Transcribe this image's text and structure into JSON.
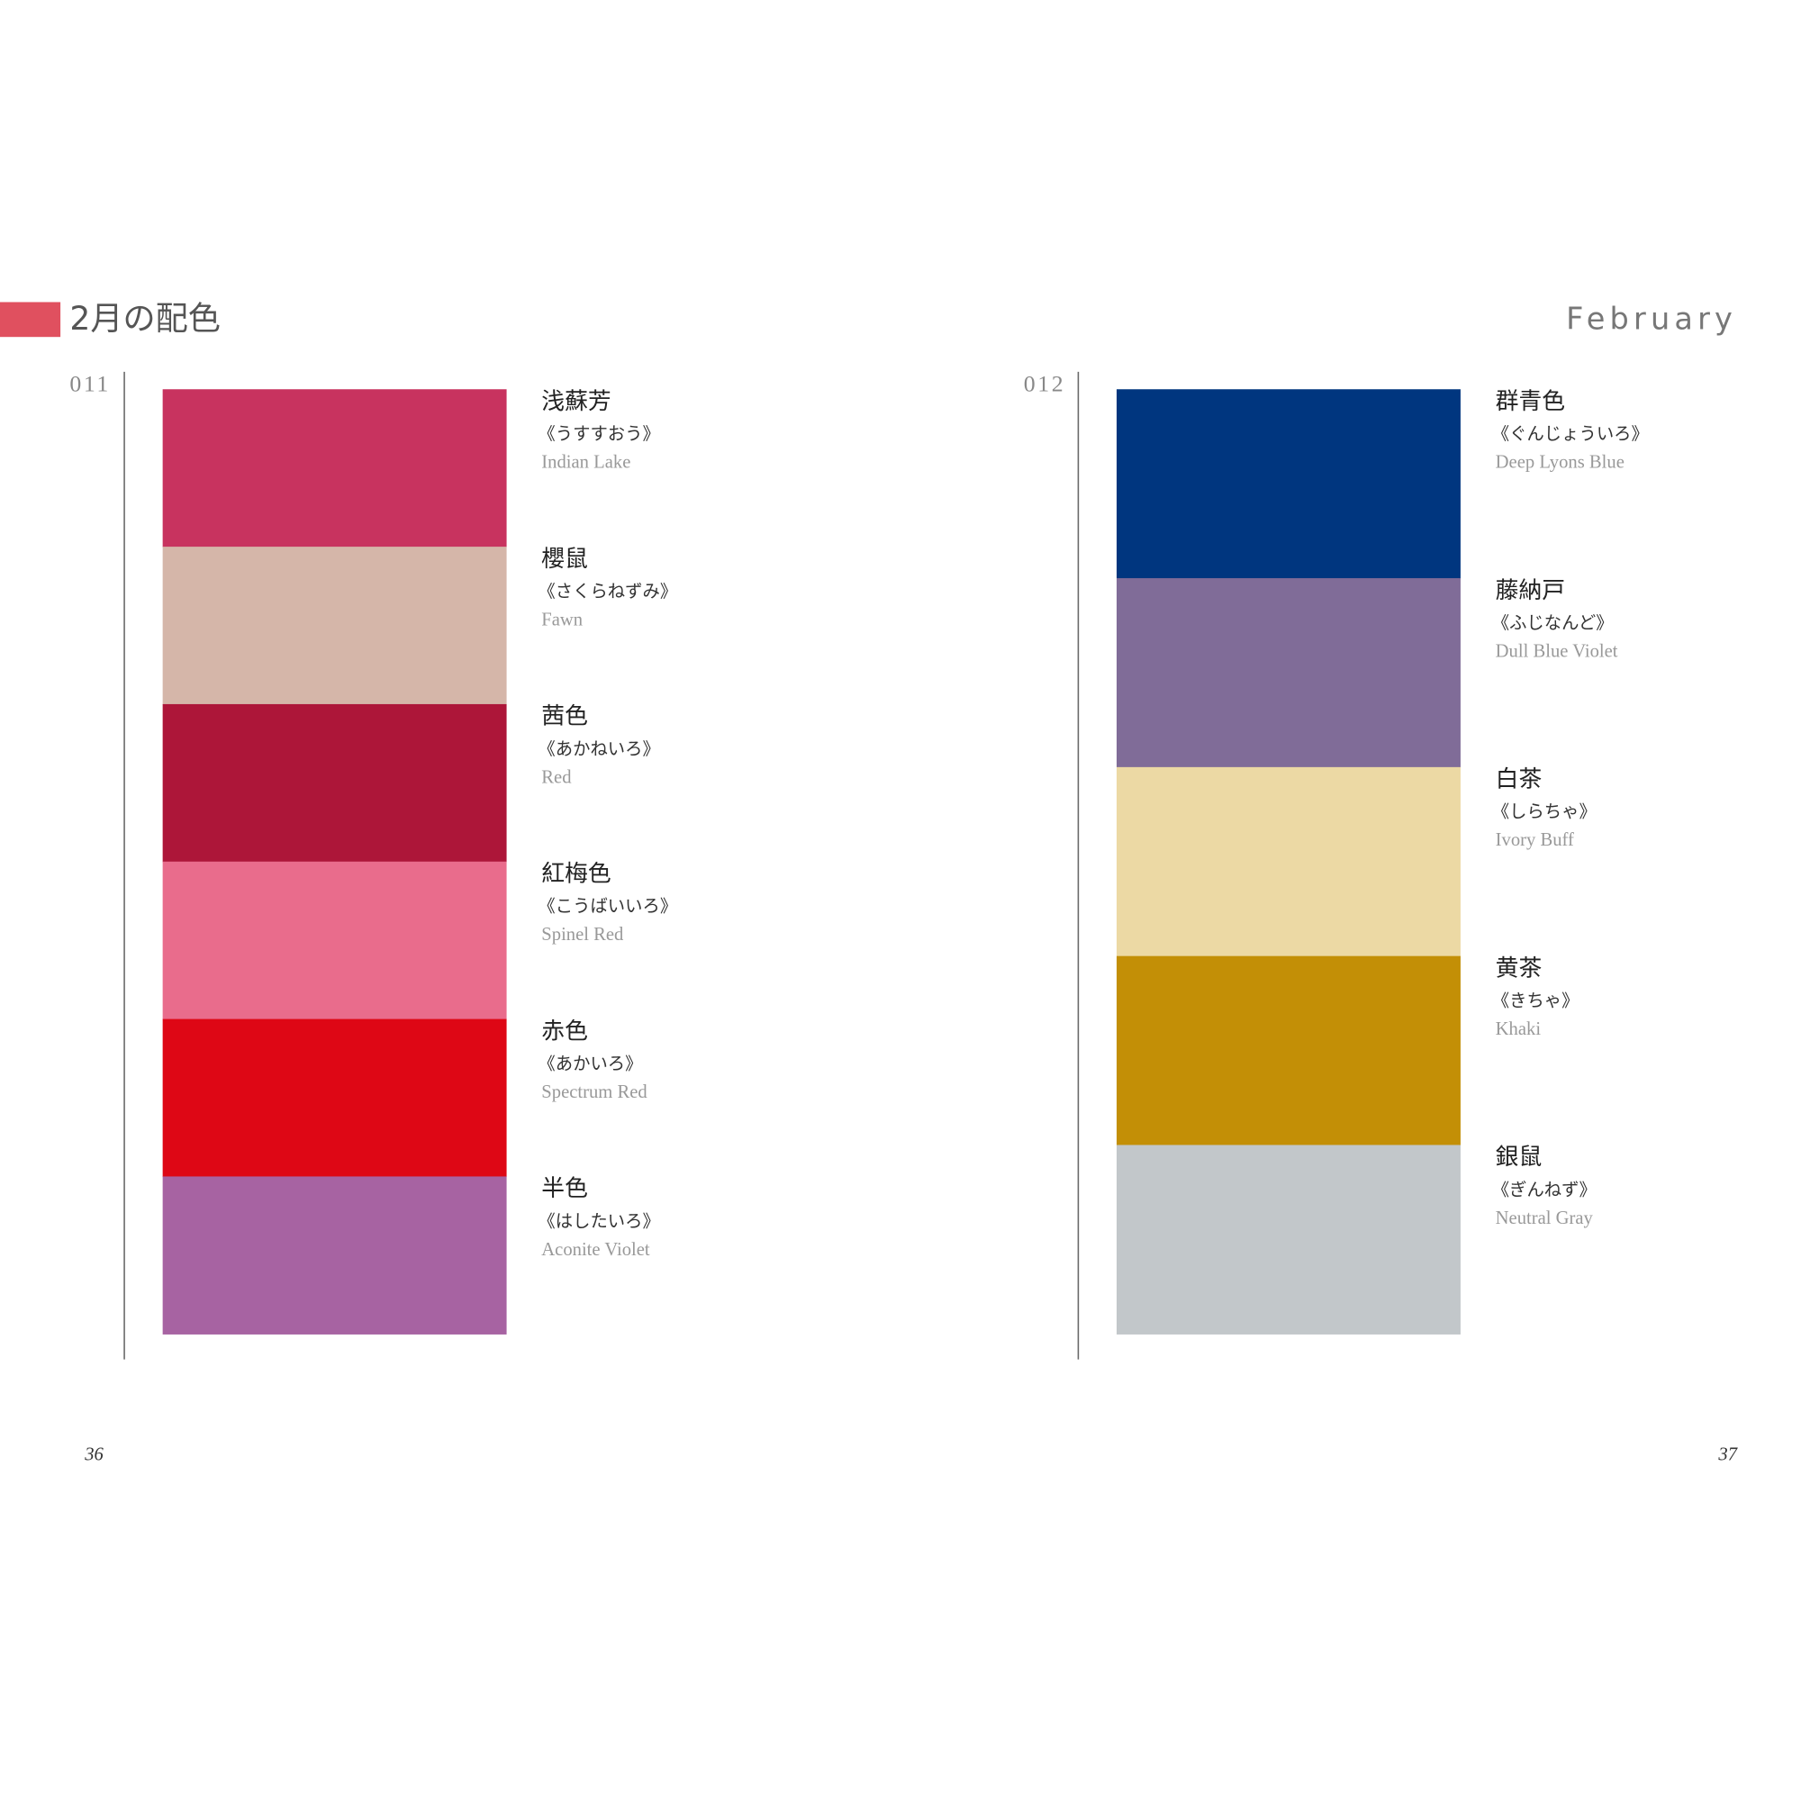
{
  "header": {
    "title": "2月の配色",
    "subtitle": "February"
  },
  "pages": [
    {
      "number_label": "011",
      "page_number": "36",
      "colors": [
        {
          "name": "浅蘇芳",
          "reading": "《うすすおう》",
          "english": "Indian Lake",
          "color": "#c8335f"
        },
        {
          "name": "櫻鼠",
          "reading": "《さくらねずみ》",
          "english": "Fawn",
          "color": "#d5b6a9"
        },
        {
          "name": "茜色",
          "reading": "《あかねいろ》",
          "english": "Red",
          "color": "#ad1639"
        },
        {
          "name": "紅梅色",
          "reading": "《こうばいいろ》",
          "english": "Spinel Red",
          "color": "#e96c8c"
        },
        {
          "name": "赤色",
          "reading": "《あかいろ》",
          "english": "Spectrum Red",
          "color": "#de0715"
        },
        {
          "name": "半色",
          "reading": "《はしたいろ》",
          "english": "Aconite Violet",
          "color": "#a763a2"
        }
      ]
    },
    {
      "number_label": "012",
      "page_number": "37",
      "colors": [
        {
          "name": "群青色",
          "reading": "《ぐんじょういろ》",
          "english": "Deep Lyons Blue",
          "color": "#00367f"
        },
        {
          "name": "藤納戸",
          "reading": "《ふじなんど》",
          "english": "Dull Blue Violet",
          "color": "#806c98"
        },
        {
          "name": "白茶",
          "reading": "《しらちゃ》",
          "english": "Ivory Buff",
          "color": "#ecd9a4"
        },
        {
          "name": "黄茶",
          "reading": "《きちゃ》",
          "english": "Khaki",
          "color": "#c38f06"
        },
        {
          "name": "銀鼠",
          "reading": "《ぎんねず》",
          "english": "Neutral Gray",
          "color": "#c2c7ca"
        }
      ]
    }
  ]
}
